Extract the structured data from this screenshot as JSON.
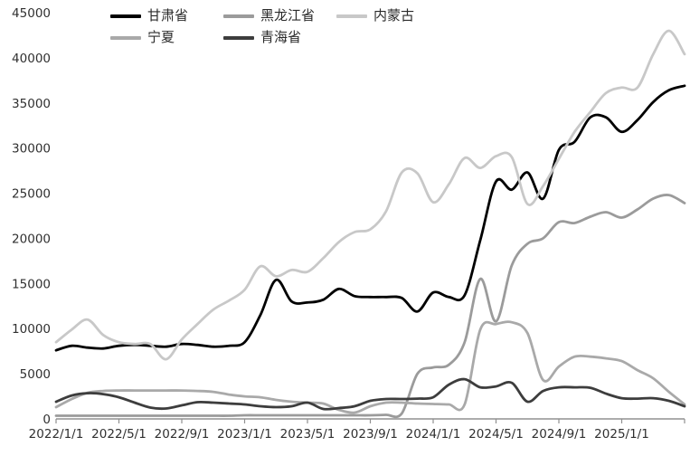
{
  "chart_data": {
    "type": "line",
    "title": "",
    "xlabel": "",
    "ylabel": "",
    "grid": false,
    "legend_position": "top",
    "ylim": [
      0,
      45000
    ],
    "y_ticks": [
      0,
      5000,
      10000,
      15000,
      20000,
      25000,
      30000,
      35000,
      40000,
      45000
    ],
    "x_start_label": "2022/1/1",
    "x_step_months": 1,
    "x_point_count": 41,
    "x_tick_every": 4,
    "x_tick_labels": [
      "2022/1/1",
      "2022/5/1",
      "2022/9/1",
      "2023/1/1",
      "2023/5/1",
      "2023/9/1",
      "2024/1/1",
      "2024/5/1",
      "2024/9/1",
      "2025/1/1"
    ],
    "axis_color": "#909090",
    "label_color": "#303030",
    "series": [
      {
        "name": "甘肃省",
        "color": "#000000",
        "values": [
          7600,
          8100,
          7900,
          7800,
          8100,
          8200,
          8100,
          8000,
          8300,
          8200,
          8000,
          8100,
          8500,
          11500,
          15400,
          13000,
          12900,
          13200,
          14400,
          13600,
          13500,
          13500,
          13400,
          11900,
          14000,
          13500,
          13700,
          19800,
          26300,
          25400,
          27300,
          24400,
          29800,
          30700,
          33400,
          33400,
          31800,
          33100,
          35100,
          36400,
          36900
        ]
      },
      {
        "name": "黑龙江省",
        "color": "#9b9b9b",
        "values": [
          350,
          350,
          350,
          350,
          350,
          350,
          350,
          350,
          350,
          350,
          350,
          350,
          400,
          400,
          400,
          400,
          400,
          400,
          400,
          400,
          400,
          450,
          600,
          5000,
          5700,
          6000,
          8500,
          15500,
          10800,
          17000,
          19400,
          20000,
          21800,
          21700,
          22400,
          22900,
          22300,
          23200,
          24400,
          24800,
          23900
        ]
      },
      {
        "name": "内蒙古",
        "color": "#c8c8c8",
        "values": [
          8500,
          9900,
          11000,
          9300,
          8500,
          8300,
          8300,
          6600,
          8800,
          10500,
          12100,
          13100,
          14300,
          16900,
          15800,
          16500,
          16300,
          17800,
          19600,
          20700,
          21000,
          23000,
          27300,
          27200,
          24000,
          26000,
          28900,
          27800,
          29100,
          29000,
          23800,
          25800,
          28800,
          31800,
          34000,
          36100,
          36700,
          36700,
          40400,
          43000,
          40400
        ]
      },
      {
        "name": "宁夏",
        "color": "#a9a9a9",
        "values": [
          1300,
          2200,
          2900,
          3100,
          3150,
          3150,
          3150,
          3150,
          3150,
          3100,
          3000,
          2700,
          2500,
          2400,
          2100,
          1900,
          1800,
          1700,
          1000,
          700,
          1400,
          1800,
          1800,
          1700,
          1650,
          1600,
          1600,
          9900,
          10500,
          10700,
          9500,
          4300,
          5800,
          6900,
          6900,
          6700,
          6400,
          5400,
          4500,
          3000,
          1600
        ]
      },
      {
        "name": "青海省",
        "color": "#3d3d3d",
        "values": [
          1900,
          2600,
          2850,
          2750,
          2400,
          1800,
          1250,
          1150,
          1500,
          1850,
          1800,
          1700,
          1600,
          1400,
          1300,
          1400,
          1800,
          1100,
          1200,
          1400,
          2000,
          2200,
          2200,
          2250,
          2400,
          3800,
          4400,
          3500,
          3600,
          4000,
          1900,
          3100,
          3500,
          3500,
          3450,
          2800,
          2300,
          2250,
          2300,
          2000,
          1400
        ]
      }
    ]
  }
}
